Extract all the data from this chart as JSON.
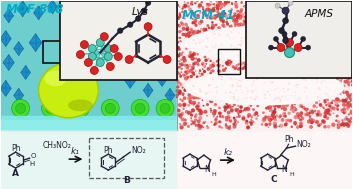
{
  "background_color": "#ffffff",
  "left_label": "MOF-808",
  "right_label": "MCM-41",
  "left_inset_label": "Lys",
  "right_inset_label": "APMS",
  "reaction1_reagent": "CH₃NO₂",
  "reaction1_catalyst": "k₁",
  "reaction2_catalyst": "k₂",
  "compound_A": "A",
  "compound_B": "B",
  "compound_C": "C",
  "left_text_color": "#00aacc",
  "right_text_color": "#00aacc",
  "arrow_color": "#333333",
  "mol_color": "#222233",
  "figsize": [
    3.53,
    1.89
  ],
  "dpi": 100
}
